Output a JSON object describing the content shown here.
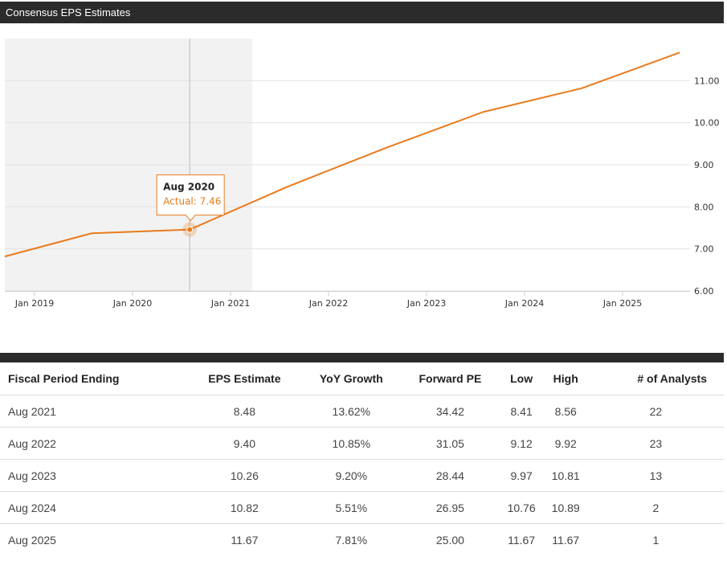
{
  "panel": {
    "title": "Consensus EPS Estimates"
  },
  "chart_data": {
    "type": "line",
    "x": [
      "2018-08",
      "2019-08",
      "2020-08",
      "2021-08",
      "2022-08",
      "2023-08",
      "2024-08",
      "2025-08"
    ],
    "y": [
      6.75,
      7.37,
      7.46,
      8.48,
      9.4,
      10.26,
      10.82,
      11.67
    ],
    "actual_through": "2020-08",
    "xticks": [
      "Jan 2019",
      "Jan 2020",
      "Jan 2021",
      "Jan 2022",
      "Jan 2023",
      "Jan 2024",
      "Jan 2025"
    ],
    "yticks": [
      "6.00",
      "7.00",
      "8.00",
      "9.00",
      "10.00",
      "11.00"
    ],
    "ylim": [
      6,
      12
    ],
    "grid": true,
    "color": "#e87b1d",
    "tooltip": {
      "title": "Aug 2020",
      "label": "Actual",
      "value": "7.46"
    }
  },
  "table": {
    "headers": [
      "Fiscal Period Ending",
      "EPS Estimate",
      "YoY Growth",
      "Forward PE",
      "Low",
      "High",
      "# of Analysts"
    ],
    "rows": [
      [
        "Aug 2021",
        "8.48",
        "13.62%",
        "34.42",
        "8.41",
        "8.56",
        "22"
      ],
      [
        "Aug 2022",
        "9.40",
        "10.85%",
        "31.05",
        "9.12",
        "9.92",
        "23"
      ],
      [
        "Aug 2023",
        "10.26",
        "9.20%",
        "28.44",
        "9.97",
        "10.81",
        "13"
      ],
      [
        "Aug 2024",
        "10.82",
        "5.51%",
        "26.95",
        "10.76",
        "10.89",
        "2"
      ],
      [
        "Aug 2025",
        "11.67",
        "7.81%",
        "25.00",
        "11.67",
        "11.67",
        "1"
      ]
    ]
  }
}
